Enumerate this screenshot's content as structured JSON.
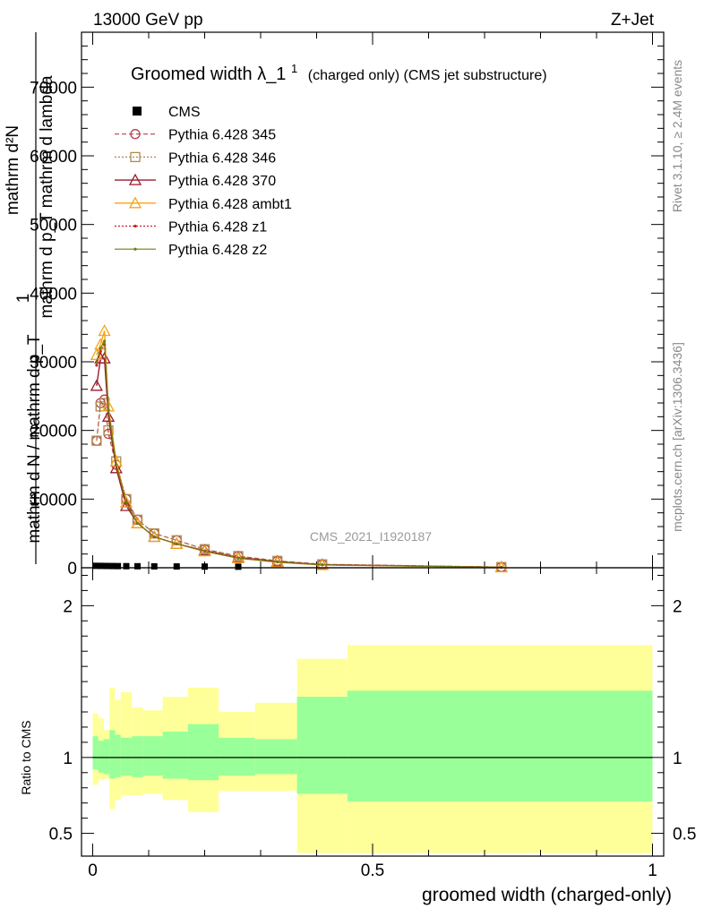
{
  "header": {
    "left": "13000 GeV pp",
    "right": "Z+Jet"
  },
  "side_text": {
    "rivet": "Rivet 3.1.10, ≥ 2.4M events",
    "mcplots": "mcplots.cern.ch [arXiv:1306.3436]"
  },
  "watermark": "CMS_2021_I1920187",
  "colors": {
    "cms": "#000000",
    "p345": "#b5414d",
    "p346": "#b08a4d",
    "p370": "#9b1a2a",
    "ambt1": "#f5a418",
    "z1": "#cc1f1f",
    "z2": "#707a18",
    "band_inner": "#99ff99",
    "band_outer": "#ffff99"
  },
  "chart_data": [
    {
      "type": "line",
      "title_main": "Groomed width",
      "title_lambda": "λ_1",
      "title_sup": "1",
      "title_rest": "(charged only) (CMS jet substructure)",
      "ylabel_top": "mathrm d²N",
      "ylabel_top2": "mathrm d p_T mathrm d lambda",
      "ylabel_num": "1",
      "ylabel_den": "mathrm d N / mathrm d p_T",
      "ylim": [
        0,
        78000
      ],
      "xlim": [
        -0.02,
        1.02
      ],
      "yticks": [
        0,
        10000,
        20000,
        30000,
        40000,
        50000,
        60000,
        70000
      ],
      "ytick_labels": [
        "0",
        "10000",
        "20000",
        "30000",
        "40000",
        "50000",
        "60000",
        "70000"
      ],
      "legend": [
        "CMS",
        "Pythia 6.428 345",
        "Pythia 6.428 346",
        "Pythia 6.428 370",
        "Pythia 6.428 ambt1",
        "Pythia 6.428 z1",
        "Pythia 6.428 z2"
      ],
      "cms_x": [
        0.005,
        0.015,
        0.025,
        0.035,
        0.045,
        0.06,
        0.08,
        0.11,
        0.15,
        0.2,
        0.26
      ],
      "cms_y": [
        150,
        140,
        130,
        120,
        110,
        100,
        90,
        70,
        60,
        40,
        20
      ],
      "series": [
        {
          "name": "Pythia 6.428 345",
          "x": [
            0.007,
            0.014,
            0.021,
            0.028,
            0.042,
            0.06,
            0.08,
            0.11,
            0.15,
            0.2,
            0.26,
            0.33,
            0.41,
            0.73
          ],
          "y": [
            18500,
            24000,
            24500,
            19500,
            15000,
            10000,
            7000,
            5000,
            4000,
            2700,
            1700,
            1000,
            500,
            100
          ]
        },
        {
          "name": "Pythia 6.428 346",
          "x": [
            0.007,
            0.014,
            0.021,
            0.028,
            0.042,
            0.06,
            0.08,
            0.11,
            0.15,
            0.2,
            0.26,
            0.33,
            0.41,
            0.73
          ],
          "y": [
            18500,
            23500,
            24000,
            20000,
            15500,
            10000,
            7000,
            5000,
            4000,
            2700,
            1700,
            1000,
            500,
            100
          ]
        },
        {
          "name": "Pythia 6.428 370",
          "x": [
            0.007,
            0.014,
            0.021,
            0.028,
            0.042,
            0.06,
            0.08,
            0.11,
            0.15,
            0.2,
            0.26,
            0.33,
            0.41,
            0.73
          ],
          "y": [
            26500,
            30500,
            30500,
            22000,
            14500,
            9000,
            6500,
            4500,
            3500,
            2500,
            1500,
            900,
            450,
            80
          ]
        },
        {
          "name": "Pythia 6.428 ambt1",
          "x": [
            0.007,
            0.014,
            0.021,
            0.028,
            0.042,
            0.06,
            0.08,
            0.11,
            0.15,
            0.2,
            0.26,
            0.33,
            0.41,
            0.73
          ],
          "y": [
            31000,
            32500,
            34500,
            23500,
            15500,
            9500,
            6500,
            4500,
            3500,
            2400,
            1400,
            800,
            400,
            70
          ]
        },
        {
          "name": "Pythia 6.428 z1",
          "x": [
            0.007,
            0.014,
            0.021,
            0.028,
            0.042,
            0.06,
            0.08,
            0.11,
            0.15,
            0.2,
            0.26,
            0.33,
            0.41,
            0.73
          ],
          "y": [
            29500,
            31500,
            32500,
            23000,
            15000,
            9500,
            6500,
            4500,
            3500,
            2400,
            1400,
            850,
            420,
            75
          ]
        },
        {
          "name": "Pythia 6.428 z2",
          "x": [
            0.007,
            0.014,
            0.021,
            0.028,
            0.042,
            0.06,
            0.08,
            0.11,
            0.15,
            0.2,
            0.26,
            0.33,
            0.41,
            0.73
          ],
          "y": [
            30000,
            32000,
            33000,
            23000,
            15000,
            9500,
            6500,
            4500,
            3500,
            2400,
            1400,
            850,
            420,
            75
          ]
        }
      ]
    },
    {
      "type": "area",
      "ylabel": "Ratio to CMS",
      "xlabel": "groomed width (charged-only)",
      "ylim": [
        0.35,
        2.25
      ],
      "xlim": [
        -0.02,
        1.02
      ],
      "yticks": [
        0.5,
        1,
        2
      ],
      "ytick_labels": [
        "0.5",
        "1",
        "2"
      ],
      "xticks": [
        0,
        0.5,
        1
      ],
      "xtick_labels": [
        "0",
        "0.5",
        "1"
      ],
      "bins": [
        {
          "x0": 0.0,
          "x1": 0.01,
          "inner": [
            0.92,
            1.14
          ],
          "outer": [
            0.82,
            1.29
          ]
        },
        {
          "x0": 0.01,
          "x1": 0.02,
          "inner": [
            0.9,
            1.11
          ],
          "outer": [
            0.85,
            1.26
          ]
        },
        {
          "x0": 0.02,
          "x1": 0.03,
          "inner": [
            0.89,
            1.12
          ],
          "outer": [
            0.86,
            1.18
          ]
        },
        {
          "x0": 0.03,
          "x1": 0.04,
          "inner": [
            0.86,
            1.18
          ],
          "outer": [
            0.66,
            1.46
          ]
        },
        {
          "x0": 0.04,
          "x1": 0.05,
          "inner": [
            0.87,
            1.15
          ],
          "outer": [
            0.72,
            1.38
          ]
        },
        {
          "x0": 0.05,
          "x1": 0.07,
          "inner": [
            0.88,
            1.13
          ],
          "outer": [
            0.75,
            1.43
          ]
        },
        {
          "x0": 0.07,
          "x1": 0.09,
          "inner": [
            0.87,
            1.14
          ],
          "outer": [
            0.75,
            1.33
          ]
        },
        {
          "x0": 0.09,
          "x1": 0.125,
          "inner": [
            0.88,
            1.14
          ],
          "outer": [
            0.76,
            1.31
          ]
        },
        {
          "x0": 0.125,
          "x1": 0.17,
          "inner": [
            0.86,
            1.17
          ],
          "outer": [
            0.72,
            1.4
          ]
        },
        {
          "x0": 0.17,
          "x1": 0.225,
          "inner": [
            0.85,
            1.22
          ],
          "outer": [
            0.64,
            1.46
          ]
        },
        {
          "x0": 0.225,
          "x1": 0.29,
          "inner": [
            0.88,
            1.13
          ],
          "outer": [
            0.78,
            1.3
          ]
        },
        {
          "x0": 0.29,
          "x1": 0.365,
          "inner": [
            0.89,
            1.12
          ],
          "outer": [
            0.78,
            1.36
          ]
        },
        {
          "x0": 0.365,
          "x1": 0.455,
          "inner": [
            0.76,
            1.4
          ],
          "outer": [
            0.37,
            1.65
          ]
        },
        {
          "x0": 0.455,
          "x1": 1.0,
          "inner": [
            0.71,
            1.44
          ],
          "outer": [
            0.37,
            1.74
          ]
        }
      ]
    }
  ]
}
